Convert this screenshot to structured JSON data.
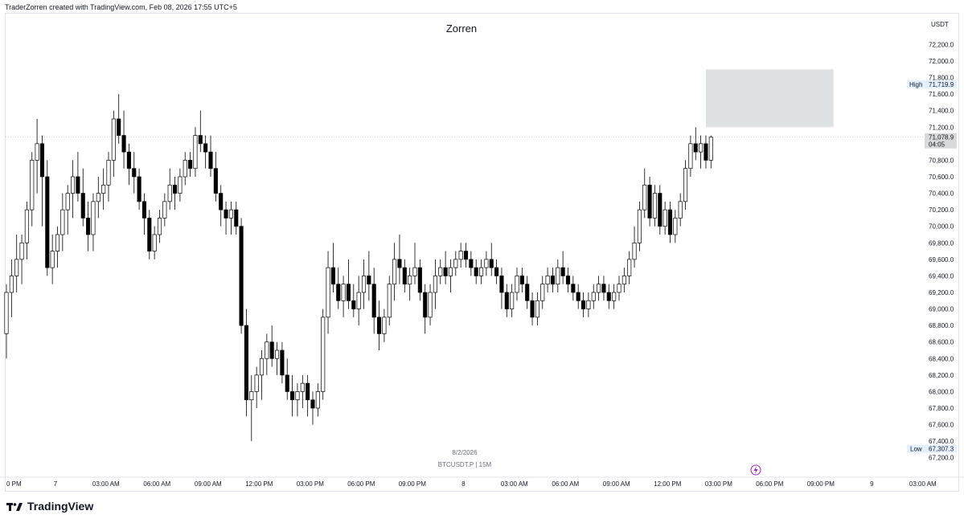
{
  "header": {
    "created_text": "TraderZorren created with TradingView.com, Feb 08, 2026 17:55 UTC+5",
    "chart_title": "Zorren"
  },
  "footer": {
    "brand": "TradingView"
  },
  "chart_data": {
    "type": "candlestick",
    "title": "Zorren",
    "symbol_label": "BTCUSDT.P | 15M",
    "date_label": "8/2/2026",
    "currency": "USDT",
    "ylim": [
      67100,
      72350
    ],
    "y_ticks": [
      72200,
      72000,
      71800,
      71600,
      71400,
      71200,
      70800,
      70600,
      70400,
      70200,
      70000,
      69800,
      69600,
      69400,
      69200,
      69000,
      68800,
      68600,
      68400,
      68200,
      68000,
      67800,
      67600,
      67400,
      67200
    ],
    "y_tick_labels": [
      "72,200.0",
      "72,000.0",
      "71,800.0",
      "71,600.0",
      "71,400.0",
      "71,200.0",
      "70,800.0",
      "70,600.0",
      "70,400.0",
      "70,200.0",
      "70,000.0",
      "69,800.0",
      "69,600.0",
      "69,400.0",
      "69,200.0",
      "69,000.0",
      "68,800.0",
      "68,600.0",
      "68,400.0",
      "68,200.0",
      "68,000.0",
      "67,800.0",
      "67,600.0",
      "67,400.0",
      "67,200.0"
    ],
    "x_tick_labels": [
      "0 PM",
      "7",
      "03:00 AM",
      "06:00 AM",
      "09:00 AM",
      "12:00 PM",
      "03:00 PM",
      "06:00 PM",
      "09:00 PM",
      "8",
      "03:00 AM",
      "06:00 AM",
      "09:00 AM",
      "12:00 PM",
      "03:00 PM",
      "06:00 PM",
      "09:00 PM",
      "9",
      "03:00 AM"
    ],
    "x_tick_bar_index": [
      0,
      9.6,
      19.5,
      29.5,
      39.5,
      49.5,
      59.5,
      69.5,
      79.5,
      89.5,
      99.5,
      109.5,
      119.5,
      129.5,
      139.5,
      149.5,
      159.5,
      169.5,
      179.5
    ],
    "last_price": 71078.9,
    "last_price_label": "71,078.9",
    "countdown": "04:05",
    "high_label": "High",
    "high_value": 71719.9,
    "high_value_label": "71,719.9",
    "low_label": "Low",
    "low_value": 67307.3,
    "low_value_label": "67,307.3",
    "zone": {
      "bar_start": 137,
      "bar_end": 162,
      "price_low": 71200,
      "price_high": 71900
    },
    "colors": {
      "candle_up": "#ffffff",
      "candle_down": "#000000",
      "wick": "#000000",
      "zone": "#dfe2e5",
      "lightning": "#9c27b0"
    },
    "ohlc": [
      [
        68700,
        69300,
        68400,
        69200
      ],
      [
        69200,
        69600,
        68900,
        69400
      ],
      [
        69400,
        69900,
        69200,
        69600
      ],
      [
        69600,
        69900,
        69300,
        69800
      ],
      [
        69800,
        70300,
        69600,
        70200
      ],
      [
        70200,
        70900,
        70000,
        70800
      ],
      [
        70800,
        71300,
        70400,
        71000
      ],
      [
        71000,
        71100,
        70000,
        70600
      ],
      [
        70600,
        70800,
        69400,
        69500
      ],
      [
        69500,
        69900,
        69300,
        69700
      ],
      [
        69700,
        70000,
        69500,
        69900
      ],
      [
        69900,
        70400,
        69700,
        70200
      ],
      [
        70200,
        70500,
        69900,
        70400
      ],
      [
        70400,
        70800,
        70100,
        70600
      ],
      [
        70600,
        70900,
        70300,
        70400
      ],
      [
        70400,
        70700,
        70000,
        70100
      ],
      [
        70100,
        70300,
        69700,
        69900
      ],
      [
        69900,
        70400,
        69700,
        70300
      ],
      [
        70300,
        70600,
        70100,
        70400
      ],
      [
        70400,
        70700,
        70200,
        70500
      ],
      [
        70500,
        70900,
        70300,
        70800
      ],
      [
        70800,
        71400,
        70600,
        71300
      ],
      [
        71300,
        71600,
        71000,
        71100
      ],
      [
        71100,
        71400,
        70700,
        70900
      ],
      [
        70900,
        71000,
        70500,
        70700
      ],
      [
        70700,
        70900,
        70400,
        70600
      ],
      [
        70600,
        70700,
        70200,
        70300
      ],
      [
        70300,
        70400,
        69900,
        70100
      ],
      [
        70100,
        70200,
        69600,
        69700
      ],
      [
        69700,
        70000,
        69600,
        69900
      ],
      [
        69900,
        70200,
        69800,
        70100
      ],
      [
        70100,
        70400,
        70000,
        70300
      ],
      [
        70300,
        70700,
        70200,
        70500
      ],
      [
        70500,
        70600,
        70200,
        70400
      ],
      [
        70400,
        70700,
        70300,
        70600
      ],
      [
        70600,
        70900,
        70500,
        70800
      ],
      [
        70800,
        70900,
        70600,
        70700
      ],
      [
        70700,
        71200,
        70600,
        71100
      ],
      [
        71100,
        71400,
        70900,
        71000
      ],
      [
        71000,
        71100,
        70700,
        70900
      ],
      [
        70900,
        71100,
        70600,
        70700
      ],
      [
        70700,
        70900,
        70300,
        70400
      ],
      [
        70400,
        70500,
        70000,
        70200
      ],
      [
        70200,
        70300,
        69900,
        70100
      ],
      [
        70100,
        70300,
        69900,
        70200
      ],
      [
        70200,
        70300,
        69900,
        70000
      ],
      [
        70000,
        70100,
        68700,
        68800
      ],
      [
        68800,
        69000,
        67700,
        67900
      ],
      [
        67900,
        68200,
        67400,
        68000
      ],
      [
        68000,
        68300,
        67800,
        68200
      ],
      [
        68200,
        68500,
        67900,
        68400
      ],
      [
        68400,
        68700,
        68200,
        68600
      ],
      [
        68600,
        68800,
        68300,
        68400
      ],
      [
        68400,
        68600,
        68200,
        68500
      ],
      [
        68500,
        68600,
        68100,
        68200
      ],
      [
        68200,
        68400,
        67900,
        68000
      ],
      [
        68000,
        68200,
        67700,
        67900
      ],
      [
        67900,
        68100,
        67700,
        68000
      ],
      [
        68000,
        68200,
        67800,
        68100
      ],
      [
        68100,
        68200,
        67700,
        67900
      ],
      [
        67900,
        68000,
        67600,
        67800
      ],
      [
        67800,
        68100,
        67700,
        68000
      ],
      [
        68000,
        69000,
        67900,
        68900
      ],
      [
        68900,
        69700,
        68700,
        69500
      ],
      [
        69500,
        69800,
        69200,
        69300
      ],
      [
        69300,
        69500,
        69000,
        69100
      ],
      [
        69100,
        69400,
        68900,
        69300
      ],
      [
        69300,
        69600,
        69000,
        69100
      ],
      [
        69100,
        69300,
        68900,
        69000
      ],
      [
        69000,
        69400,
        68800,
        69200
      ],
      [
        69200,
        69600,
        69000,
        69400
      ],
      [
        69400,
        69700,
        69100,
        69300
      ],
      [
        69300,
        69500,
        68700,
        68900
      ],
      [
        68900,
        69100,
        68500,
        68700
      ],
      [
        68700,
        69000,
        68600,
        68900
      ],
      [
        68900,
        69400,
        68800,
        69300
      ],
      [
        69300,
        69800,
        69100,
        69600
      ],
      [
        69600,
        69900,
        69300,
        69500
      ],
      [
        69500,
        69600,
        69200,
        69300
      ],
      [
        69300,
        69500,
        69100,
        69400
      ],
      [
        69400,
        69800,
        69300,
        69500
      ],
      [
        69500,
        69600,
        69100,
        69200
      ],
      [
        69200,
        69300,
        68700,
        68900
      ],
      [
        68900,
        69300,
        68800,
        69200
      ],
      [
        69200,
        69600,
        69000,
        69400
      ],
      [
        69400,
        69600,
        69300,
        69500
      ],
      [
        69500,
        69700,
        69300,
        69400
      ],
      [
        69400,
        69600,
        69200,
        69500
      ],
      [
        69500,
        69700,
        69400,
        69600
      ],
      [
        69600,
        69800,
        69500,
        69700
      ],
      [
        69700,
        69800,
        69500,
        69600
      ],
      [
        69600,
        69700,
        69400,
        69500
      ],
      [
        69500,
        69600,
        69300,
        69400
      ],
      [
        69400,
        69600,
        69300,
        69500
      ],
      [
        69500,
        69700,
        69400,
        69600
      ],
      [
        69600,
        69800,
        69400,
        69500
      ],
      [
        69500,
        69600,
        69300,
        69400
      ],
      [
        69400,
        69500,
        69000,
        69200
      ],
      [
        69200,
        69300,
        68900,
        69000
      ],
      [
        69000,
        69300,
        68900,
        69200
      ],
      [
        69200,
        69500,
        69100,
        69400
      ],
      [
        69400,
        69500,
        69200,
        69300
      ],
      [
        69300,
        69400,
        69000,
        69100
      ],
      [
        69100,
        69200,
        68800,
        68900
      ],
      [
        68900,
        69200,
        68800,
        69100
      ],
      [
        69100,
        69400,
        69000,
        69300
      ],
      [
        69300,
        69500,
        69200,
        69400
      ],
      [
        69400,
        69500,
        69200,
        69300
      ],
      [
        69300,
        69600,
        69200,
        69500
      ],
      [
        69500,
        69700,
        69300,
        69400
      ],
      [
        69400,
        69500,
        69200,
        69300
      ],
      [
        69300,
        69400,
        69100,
        69200
      ],
      [
        69200,
        69300,
        69000,
        69100
      ],
      [
        69100,
        69200,
        68900,
        69000
      ],
      [
        69000,
        69200,
        68900,
        69100
      ],
      [
        69100,
        69300,
        69000,
        69200
      ],
      [
        69200,
        69400,
        69100,
        69300
      ],
      [
        69300,
        69400,
        69100,
        69200
      ],
      [
        69200,
        69300,
        69000,
        69100
      ],
      [
        69100,
        69300,
        69000,
        69200
      ],
      [
        69200,
        69400,
        69100,
        69300
      ],
      [
        69300,
        69500,
        69200,
        69400
      ],
      [
        69400,
        69700,
        69300,
        69600
      ],
      [
        69600,
        70000,
        69500,
        69800
      ],
      [
        69800,
        70300,
        69700,
        70200
      ],
      [
        70200,
        70700,
        70100,
        70500
      ],
      [
        70500,
        70600,
        70000,
        70100
      ],
      [
        70100,
        70500,
        70000,
        70400
      ],
      [
        70400,
        70500,
        69900,
        70000
      ],
      [
        70000,
        70300,
        69900,
        70200
      ],
      [
        70200,
        70300,
        69800,
        69900
      ],
      [
        69900,
        70200,
        69800,
        70100
      ],
      [
        70100,
        70400,
        70000,
        70300
      ],
      [
        70300,
        70800,
        70200,
        70700
      ],
      [
        70700,
        71100,
        70600,
        71000
      ],
      [
        71000,
        71200,
        70800,
        70900
      ],
      [
        70900,
        71100,
        70700,
        71000
      ],
      [
        71000,
        71100,
        70700,
        70800
      ],
      [
        70800,
        71100,
        70700,
        71079
      ]
    ]
  }
}
